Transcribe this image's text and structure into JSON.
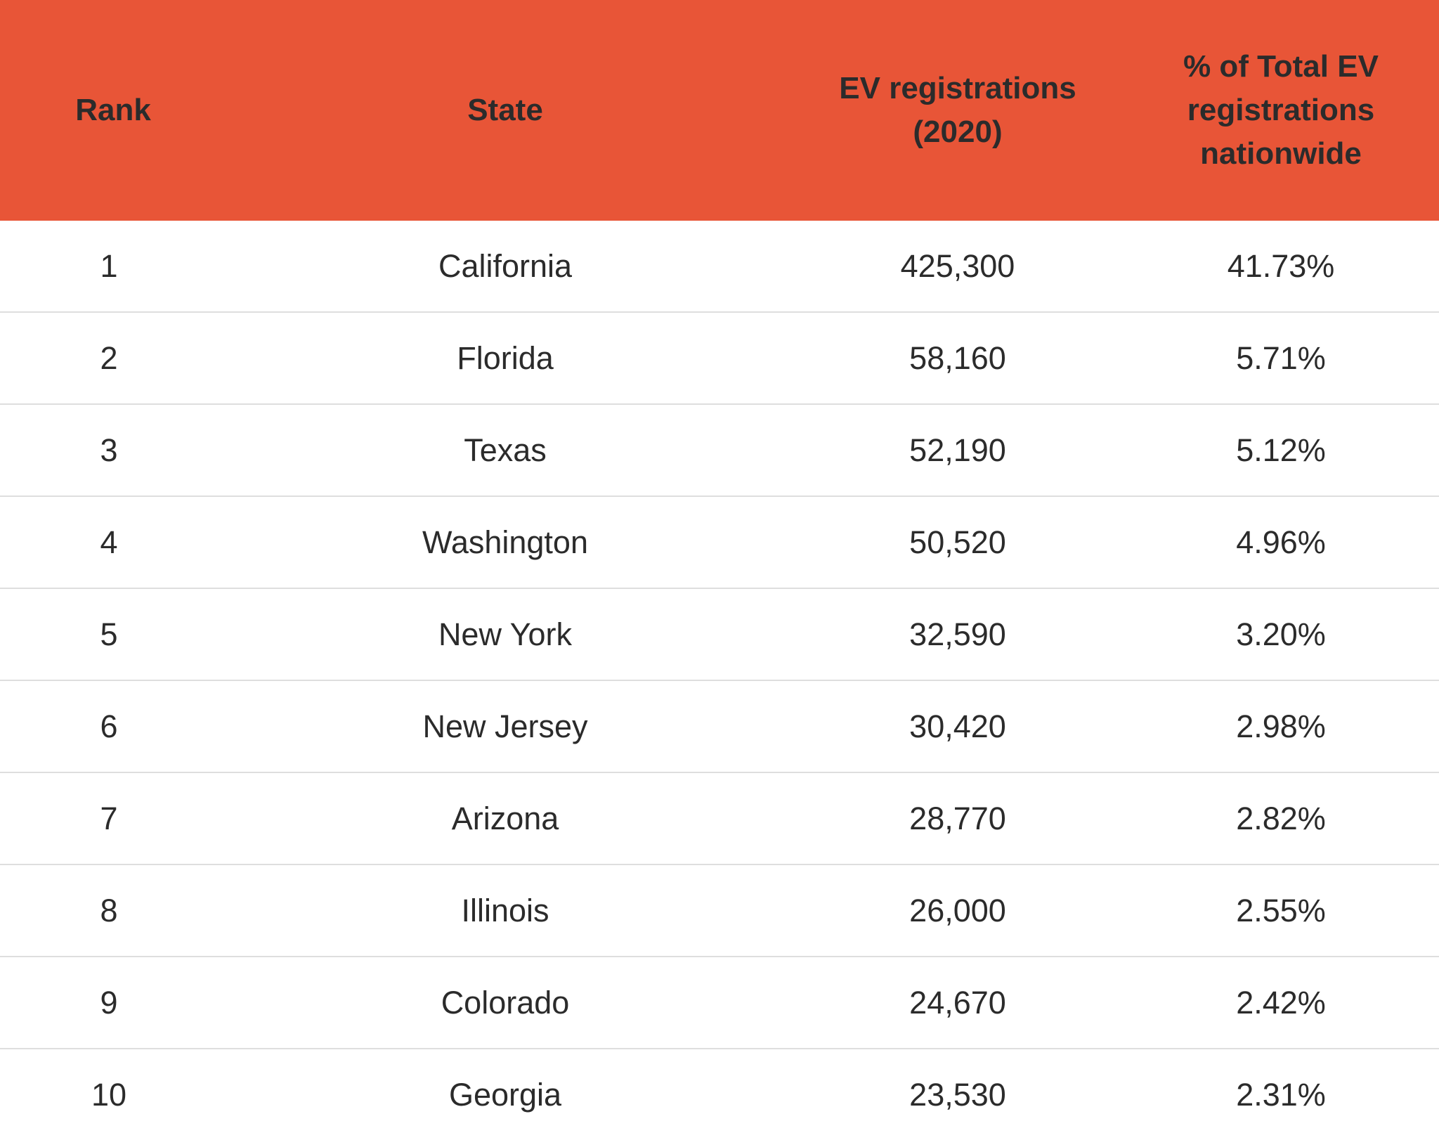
{
  "chart_data": {
    "type": "table",
    "title": "",
    "colors": {
      "header_bg": "#e85537",
      "text": "#2b2b2b",
      "row_divider": "#dedede"
    },
    "columns": [
      "Rank",
      "State",
      "EV registrations (2020)",
      "% of Total EV registrations nationwide"
    ],
    "rows": [
      {
        "rank": "1",
        "state": "California",
        "registrations": "425,300",
        "percent": "41.73%"
      },
      {
        "rank": "2",
        "state": "Florida",
        "registrations": "58,160",
        "percent": "5.71%"
      },
      {
        "rank": "3",
        "state": "Texas",
        "registrations": "52,190",
        "percent": "5.12%"
      },
      {
        "rank": "4",
        "state": "Washington",
        "registrations": "50,520",
        "percent": "4.96%"
      },
      {
        "rank": "5",
        "state": "New York",
        "registrations": "32,590",
        "percent": "3.20%"
      },
      {
        "rank": "6",
        "state": "New Jersey",
        "registrations": "30,420",
        "percent": "2.98%"
      },
      {
        "rank": "7",
        "state": "Arizona",
        "registrations": "28,770",
        "percent": "2.82%"
      },
      {
        "rank": "8",
        "state": "Illinois",
        "registrations": "26,000",
        "percent": "2.55%"
      },
      {
        "rank": "9",
        "state": "Colorado",
        "registrations": "24,670",
        "percent": "2.42%"
      },
      {
        "rank": "10",
        "state": "Georgia",
        "registrations": "23,530",
        "percent": "2.31%"
      }
    ]
  }
}
